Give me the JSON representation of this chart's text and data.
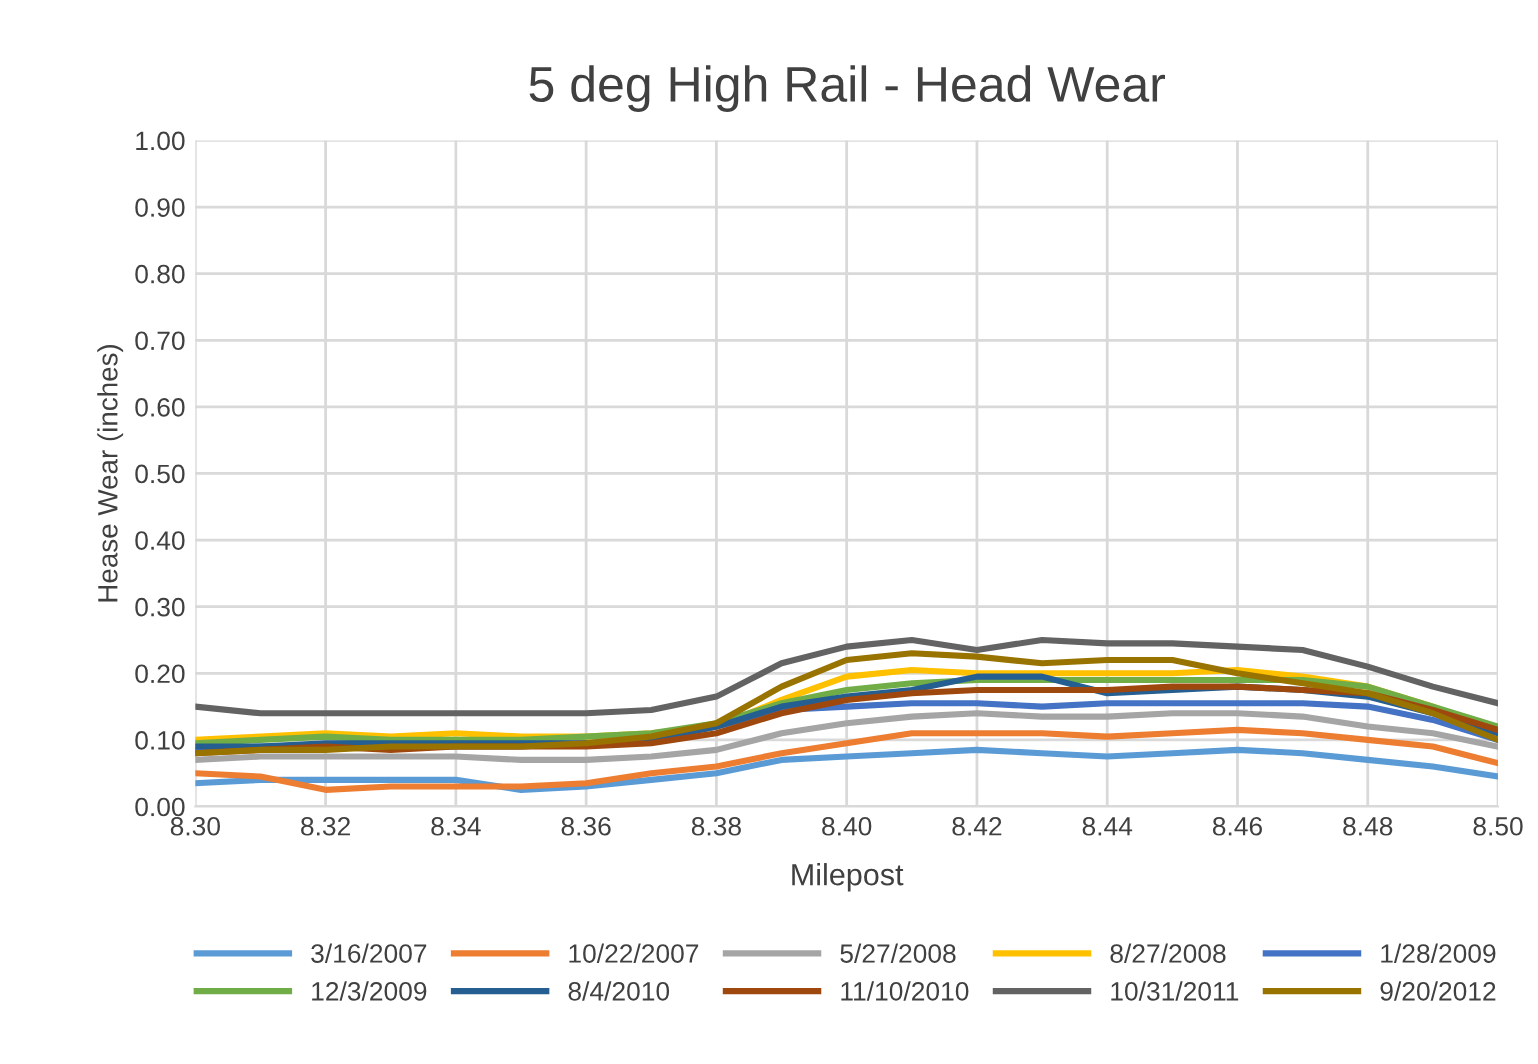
{
  "chart_data": {
    "type": "line",
    "title": "5 deg High Rail - Head Wear",
    "xlabel": "Milepost",
    "ylabel": "Hease Wear (inches)",
    "x": [
      8.3,
      8.31,
      8.32,
      8.33,
      8.34,
      8.35,
      8.36,
      8.37,
      8.38,
      8.39,
      8.4,
      8.41,
      8.42,
      8.43,
      8.44,
      8.45,
      8.46,
      8.47,
      8.48,
      8.49,
      8.5
    ],
    "series": [
      {
        "name": "3/16/2007",
        "color": "#5b9bd5",
        "values": [
          0.035,
          0.04,
          0.04,
          0.04,
          0.04,
          0.025,
          0.03,
          0.04,
          0.05,
          0.07,
          0.075,
          0.08,
          0.085,
          0.08,
          0.075,
          0.08,
          0.085,
          0.08,
          0.07,
          0.06,
          0.045
        ]
      },
      {
        "name": "10/22/2007",
        "color": "#ed7d31",
        "values": [
          0.05,
          0.045,
          0.025,
          0.03,
          0.03,
          0.03,
          0.035,
          0.05,
          0.06,
          0.08,
          0.095,
          0.11,
          0.11,
          0.11,
          0.105,
          0.11,
          0.115,
          0.11,
          0.1,
          0.09,
          0.065
        ]
      },
      {
        "name": "5/27/2008",
        "color": "#a5a5a5",
        "values": [
          0.07,
          0.075,
          0.075,
          0.075,
          0.075,
          0.07,
          0.07,
          0.075,
          0.085,
          0.11,
          0.125,
          0.135,
          0.14,
          0.135,
          0.135,
          0.14,
          0.14,
          0.135,
          0.12,
          0.11,
          0.09
        ]
      },
      {
        "name": "8/27/2008",
        "color": "#ffc000",
        "values": [
          0.1,
          0.105,
          0.11,
          0.105,
          0.11,
          0.105,
          0.105,
          0.11,
          0.12,
          0.16,
          0.195,
          0.205,
          0.2,
          0.2,
          0.2,
          0.2,
          0.205,
          0.195,
          0.18,
          0.15,
          0.11
        ]
      },
      {
        "name": "1/28/2009",
        "color": "#4472c4",
        "values": [
          0.085,
          0.09,
          0.09,
          0.09,
          0.09,
          0.09,
          0.095,
          0.1,
          0.12,
          0.145,
          0.15,
          0.155,
          0.155,
          0.15,
          0.155,
          0.155,
          0.155,
          0.155,
          0.15,
          0.13,
          0.1
        ]
      },
      {
        "name": "12/3/2009",
        "color": "#70ad47",
        "values": [
          0.095,
          0.1,
          0.105,
          0.1,
          0.1,
          0.1,
          0.105,
          0.11,
          0.125,
          0.155,
          0.175,
          0.185,
          0.19,
          0.19,
          0.19,
          0.19,
          0.19,
          0.19,
          0.18,
          0.15,
          0.12
        ]
      },
      {
        "name": "8/4/2010",
        "color": "#255e91",
        "values": [
          0.09,
          0.09,
          0.095,
          0.095,
          0.095,
          0.095,
          0.095,
          0.1,
          0.12,
          0.15,
          0.165,
          0.175,
          0.195,
          0.195,
          0.17,
          0.175,
          0.18,
          0.175,
          0.165,
          0.14,
          0.11
        ]
      },
      {
        "name": "11/10/2010",
        "color": "#9e480e",
        "values": [
          0.08,
          0.085,
          0.09,
          0.085,
          0.09,
          0.09,
          0.09,
          0.095,
          0.11,
          0.14,
          0.16,
          0.17,
          0.175,
          0.175,
          0.175,
          0.18,
          0.18,
          0.175,
          0.17,
          0.145,
          0.115
        ]
      },
      {
        "name": "10/31/2011",
        "color": "#636363",
        "values": [
          0.15,
          0.14,
          0.14,
          0.14,
          0.14,
          0.14,
          0.14,
          0.145,
          0.165,
          0.215,
          0.24,
          0.25,
          0.235,
          0.25,
          0.245,
          0.245,
          0.24,
          0.235,
          0.21,
          0.18,
          0.155
        ]
      },
      {
        "name": "9/20/2012",
        "color": "#997300",
        "values": [
          0.08,
          0.085,
          0.085,
          0.09,
          0.09,
          0.09,
          0.095,
          0.105,
          0.125,
          0.18,
          0.22,
          0.23,
          0.225,
          0.215,
          0.22,
          0.22,
          0.2,
          0.185,
          0.17,
          0.14,
          0.1
        ]
      }
    ],
    "xlim": [
      8.3,
      8.5
    ],
    "xticks": [
      {
        "value": 8.3,
        "label": "8.30"
      },
      {
        "value": 8.32,
        "label": "8.32"
      },
      {
        "value": 8.34,
        "label": "8.34"
      },
      {
        "value": 8.36,
        "label": "8.36"
      },
      {
        "value": 8.38,
        "label": "8.38"
      },
      {
        "value": 8.4,
        "label": "8.40"
      },
      {
        "value": 8.42,
        "label": "8.42"
      },
      {
        "value": 8.44,
        "label": "8.44"
      },
      {
        "value": 8.46,
        "label": "8.46"
      },
      {
        "value": 8.48,
        "label": "8.48"
      },
      {
        "value": 8.5,
        "label": "8.50"
      }
    ],
    "ylim": [
      0,
      1
    ],
    "yticks": [
      {
        "value": 0,
        "label": "0.00"
      },
      {
        "value": 0.1,
        "label": "0.10"
      },
      {
        "value": 0.2,
        "label": "0.20"
      },
      {
        "value": 0.3,
        "label": "0.30"
      },
      {
        "value": 0.4,
        "label": "0.40"
      },
      {
        "value": 0.5,
        "label": "0.50"
      },
      {
        "value": 0.6,
        "label": "0.60"
      },
      {
        "value": 0.7,
        "label": "0.70"
      },
      {
        "value": 0.8,
        "label": "0.80"
      },
      {
        "value": 0.9,
        "label": "0.90"
      },
      {
        "value": 1,
        "label": "1.00"
      }
    ],
    "grid": true,
    "legend": "bottom",
    "marker": "none",
    "line_style": "solid"
  }
}
